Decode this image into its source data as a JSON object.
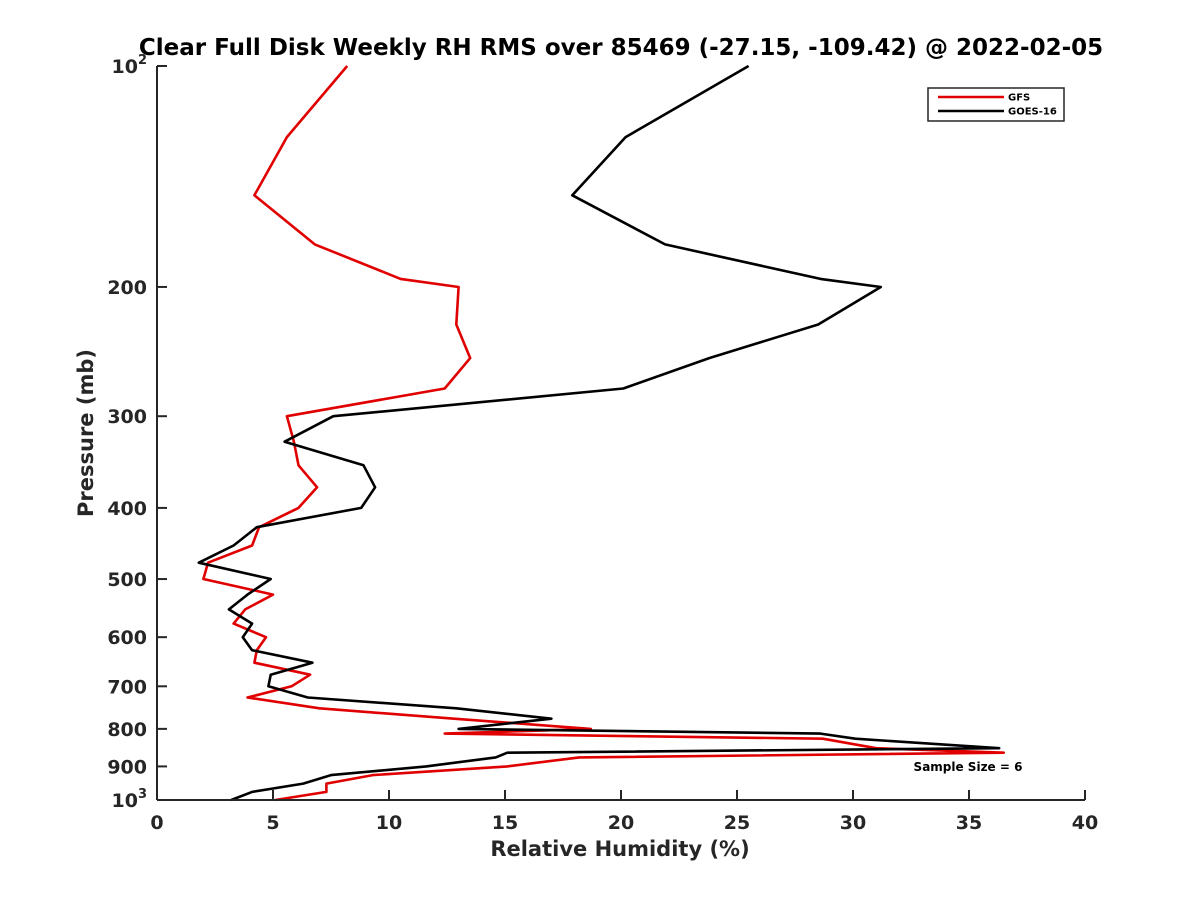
{
  "chart_data": {
    "type": "line",
    "title": "Clear Full Disk Weekly RH RMS over 85469 (-27.15, -109.42) @ 2022-02-05",
    "xlabel": "Relative Humidity (%)",
    "ylabel": "Pressure (mb)",
    "xlim": [
      0,
      40
    ],
    "ylim": [
      100,
      1000
    ],
    "yscale": "log",
    "y_reversed": false,
    "x_ticks": [
      0,
      5,
      10,
      15,
      20,
      25,
      30,
      35,
      40
    ],
    "y_ticks": [
      {
        "value": 100,
        "label": "10",
        "sup": "2"
      },
      {
        "value": 200,
        "label": "200",
        "sup": ""
      },
      {
        "value": 300,
        "label": "300",
        "sup": ""
      },
      {
        "value": 400,
        "label": "400",
        "sup": ""
      },
      {
        "value": 500,
        "label": "500",
        "sup": ""
      },
      {
        "value": 600,
        "label": "600",
        "sup": ""
      },
      {
        "value": 700,
        "label": "700",
        "sup": ""
      },
      {
        "value": 800,
        "label": "800",
        "sup": ""
      },
      {
        "value": 900,
        "label": "900",
        "sup": ""
      },
      {
        "value": 1000,
        "label": "10",
        "sup": "3"
      }
    ],
    "legend_position": "top-right",
    "grid": false,
    "annotation": "Sample Size = 6",
    "series": [
      {
        "name": "GFS",
        "color": "#e00000",
        "points": [
          [
            8.2,
            100
          ],
          [
            5.6,
            125
          ],
          [
            4.2,
            150
          ],
          [
            6.8,
            175
          ],
          [
            10.5,
            195
          ],
          [
            13.0,
            200
          ],
          [
            12.9,
            225
          ],
          [
            13.5,
            250
          ],
          [
            12.4,
            275
          ],
          [
            5.6,
            300
          ],
          [
            5.9,
            325
          ],
          [
            6.1,
            350
          ],
          [
            6.9,
            375
          ],
          [
            6.1,
            400
          ],
          [
            4.4,
            425
          ],
          [
            4.1,
            450
          ],
          [
            2.2,
            475
          ],
          [
            2.0,
            500
          ],
          [
            5.0,
            525
          ],
          [
            3.8,
            550
          ],
          [
            3.3,
            575
          ],
          [
            4.7,
            600
          ],
          [
            4.3,
            625
          ],
          [
            4.2,
            650
          ],
          [
            6.6,
            675
          ],
          [
            5.8,
            700
          ],
          [
            3.9,
            725
          ],
          [
            7.0,
            750
          ],
          [
            12.8,
            775
          ],
          [
            18.7,
            800
          ],
          [
            12.4,
            812
          ],
          [
            28.7,
            825
          ],
          [
            31.0,
            850
          ],
          [
            36.5,
            862
          ],
          [
            18.2,
            875
          ],
          [
            15.1,
            900
          ],
          [
            9.3,
            925
          ],
          [
            7.3,
            950
          ],
          [
            7.3,
            975
          ],
          [
            5.1,
            1000
          ]
        ]
      },
      {
        "name": "GOES-16",
        "color": "#000000",
        "points": [
          [
            25.5,
            100
          ],
          [
            20.2,
            125
          ],
          [
            17.9,
            150
          ],
          [
            21.9,
            175
          ],
          [
            28.6,
            195
          ],
          [
            31.2,
            200
          ],
          [
            28.5,
            225
          ],
          [
            23.8,
            250
          ],
          [
            20.1,
            275
          ],
          [
            7.6,
            300
          ],
          [
            5.5,
            325
          ],
          [
            8.9,
            350
          ],
          [
            9.4,
            375
          ],
          [
            8.8,
            400
          ],
          [
            4.3,
            425
          ],
          [
            3.3,
            450
          ],
          [
            1.8,
            475
          ],
          [
            4.9,
            500
          ],
          [
            3.9,
            525
          ],
          [
            3.1,
            550
          ],
          [
            4.1,
            575
          ],
          [
            3.7,
            600
          ],
          [
            4.1,
            625
          ],
          [
            6.7,
            650
          ],
          [
            4.9,
            675
          ],
          [
            4.8,
            700
          ],
          [
            6.5,
            725
          ],
          [
            12.9,
            750
          ],
          [
            17.0,
            775
          ],
          [
            13.0,
            800
          ],
          [
            28.6,
            812
          ],
          [
            30.1,
            825
          ],
          [
            36.3,
            850
          ],
          [
            15.1,
            862
          ],
          [
            14.6,
            875
          ],
          [
            11.6,
            900
          ],
          [
            7.5,
            925
          ],
          [
            6.3,
            950
          ],
          [
            4.1,
            975
          ],
          [
            3.2,
            1000
          ]
        ]
      }
    ]
  }
}
